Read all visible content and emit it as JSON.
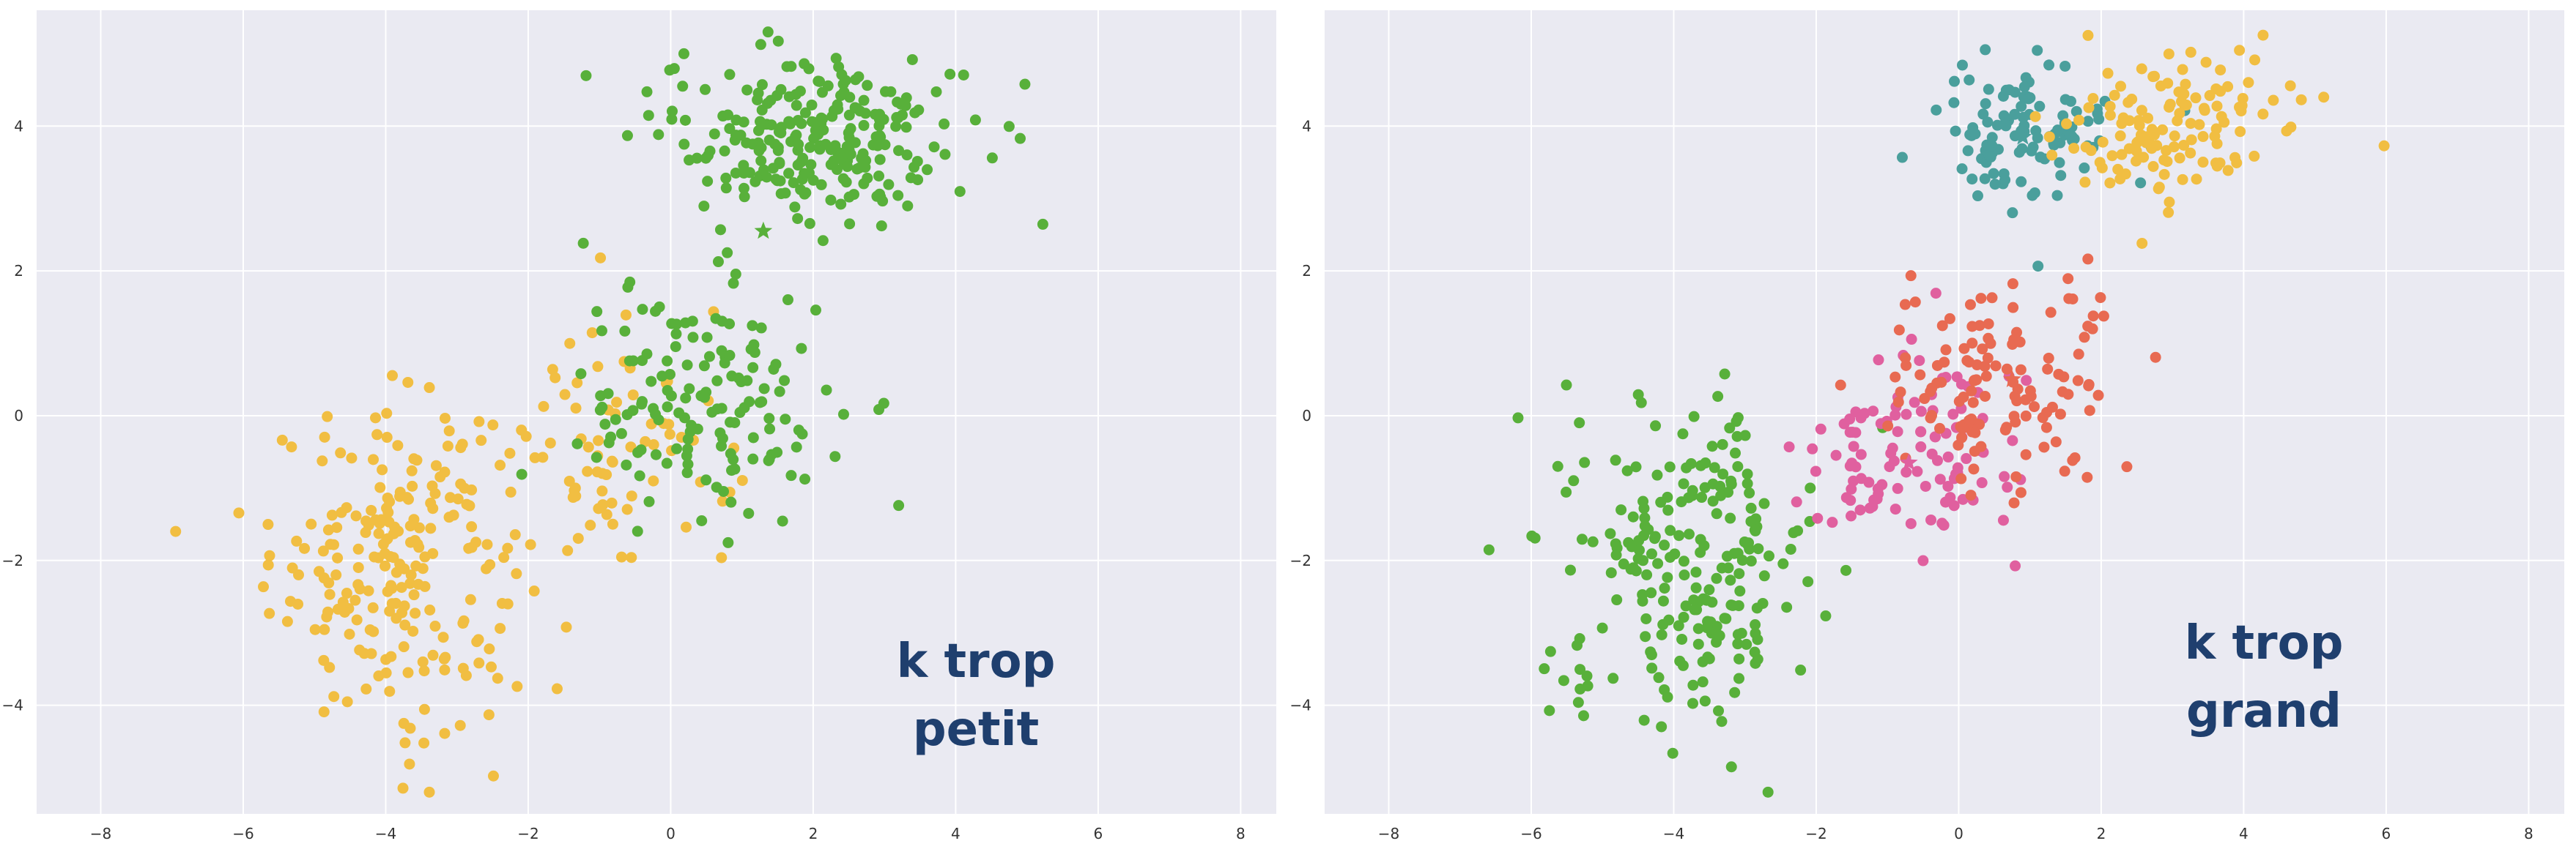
{
  "chart_data": [
    {
      "type": "scatter",
      "title": "",
      "xlabel": "",
      "ylabel": "",
      "xlim": [
        -8.9,
        8.5
      ],
      "ylim": [
        -5.5,
        5.6
      ],
      "xticks": [
        -8,
        -6,
        -4,
        -2,
        0,
        2,
        4,
        6,
        8
      ],
      "yticks": [
        -4,
        -2,
        0,
        2,
        4
      ],
      "grid": true,
      "annotation": [
        "k trop",
        "petit"
      ],
      "series": [
        {
          "color": "#f1be42",
          "center": [
            -3.8,
            -2.0
          ],
          "spread": [
            0.9,
            1.1
          ],
          "count": 230
        },
        {
          "color": "#f1be42",
          "center": [
            -0.6,
            -0.5
          ],
          "spread": [
            0.7,
            0.9
          ],
          "count": 70
        },
        {
          "color": "#58b03a",
          "center": [
            0.5,
            0.2
          ],
          "spread": [
            0.9,
            0.8
          ],
          "count": 150
        },
        {
          "color": "#58b03a",
          "center": [
            2.0,
            3.9
          ],
          "spread": [
            1.1,
            0.6
          ],
          "count": 250
        }
      ],
      "centroids": [
        {
          "x": 1.3,
          "y": 2.55,
          "color": "#58b03a"
        }
      ]
    },
    {
      "type": "scatter",
      "title": "",
      "xlabel": "",
      "ylabel": "",
      "xlim": [
        -8.9,
        8.5
      ],
      "ylim": [
        -5.5,
        5.6
      ],
      "xticks": [
        -8,
        -6,
        -4,
        -2,
        0,
        2,
        4,
        6,
        8
      ],
      "yticks": [
        -4,
        -2,
        0,
        2,
        4
      ],
      "grid": true,
      "annotation": [
        "k trop",
        "grand"
      ],
      "series": [
        {
          "color": "#58b03a",
          "center": [
            -3.8,
            -2.0
          ],
          "spread": [
            0.9,
            1.1
          ],
          "count": 230
        },
        {
          "color": "#e0609f",
          "center": [
            -0.8,
            -0.6
          ],
          "spread": [
            0.8,
            0.7
          ],
          "count": 110
        },
        {
          "color": "#e86a52",
          "center": [
            0.6,
            0.4
          ],
          "spread": [
            0.9,
            0.7
          ],
          "count": 130
        },
        {
          "color": "#4a9f9c",
          "center": [
            0.9,
            3.9
          ],
          "spread": [
            0.6,
            0.5
          ],
          "count": 110
        },
        {
          "color": "#f1be42",
          "center": [
            3.0,
            4.0
          ],
          "spread": [
            0.8,
            0.5
          ],
          "count": 130
        }
      ],
      "centroids": [
        {
          "x": -0.7,
          "y": -0.65,
          "color": "#e0609f"
        },
        {
          "x": 0.75,
          "y": 0.5,
          "color": "#e86a52"
        },
        {
          "x": 0.9,
          "y": 3.85,
          "color": "#4a9f9c"
        }
      ]
    }
  ]
}
